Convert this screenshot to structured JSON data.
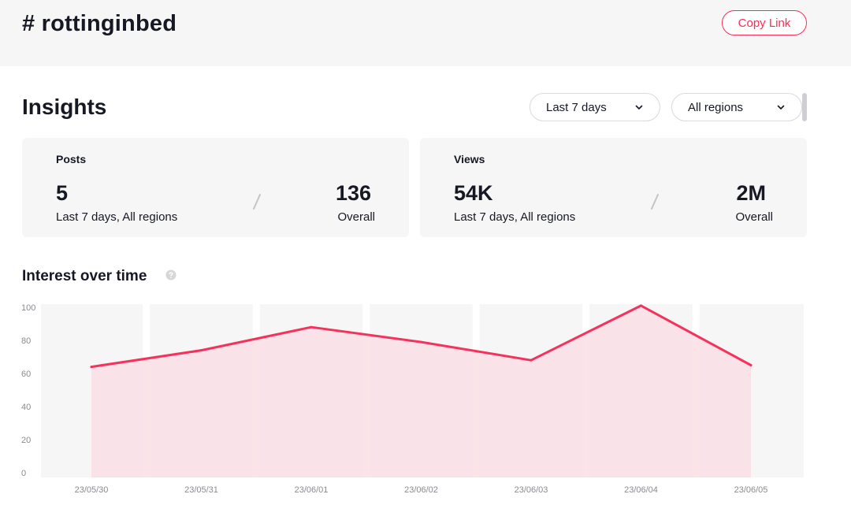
{
  "header": {
    "title": "# rottinginbed",
    "copy_link_label": "Copy Link"
  },
  "insights": {
    "title": "Insights",
    "period_select": "Last 7 days",
    "region_select": "All regions"
  },
  "cards": {
    "posts": {
      "label": "Posts",
      "recent_value": "5",
      "recent_caption": "Last 7 days, All regions",
      "overall_value": "136",
      "overall_caption": "Overall"
    },
    "views": {
      "label": "Views",
      "recent_value": "54K",
      "recent_caption": "Last 7 days, All regions",
      "overall_value": "2M",
      "overall_caption": "Overall"
    }
  },
  "interest": {
    "title": "Interest over time"
  },
  "colors": {
    "accent": "#fe2c55",
    "line": "#f6325c",
    "area": "#fbe1e6",
    "band": "#f6f6f7"
  },
  "chart_data": {
    "type": "area",
    "x": [
      "23/05/30",
      "23/05/31",
      "23/06/01",
      "23/06/02",
      "23/06/03",
      "23/06/04",
      "23/06/05"
    ],
    "series": [
      {
        "values": [
          64,
          74,
          88,
          79,
          68,
          101,
          65
        ]
      }
    ],
    "yticks": [
      0,
      20,
      40,
      60,
      80,
      100
    ],
    "ylim": [
      0,
      100
    ],
    "grid": false
  }
}
